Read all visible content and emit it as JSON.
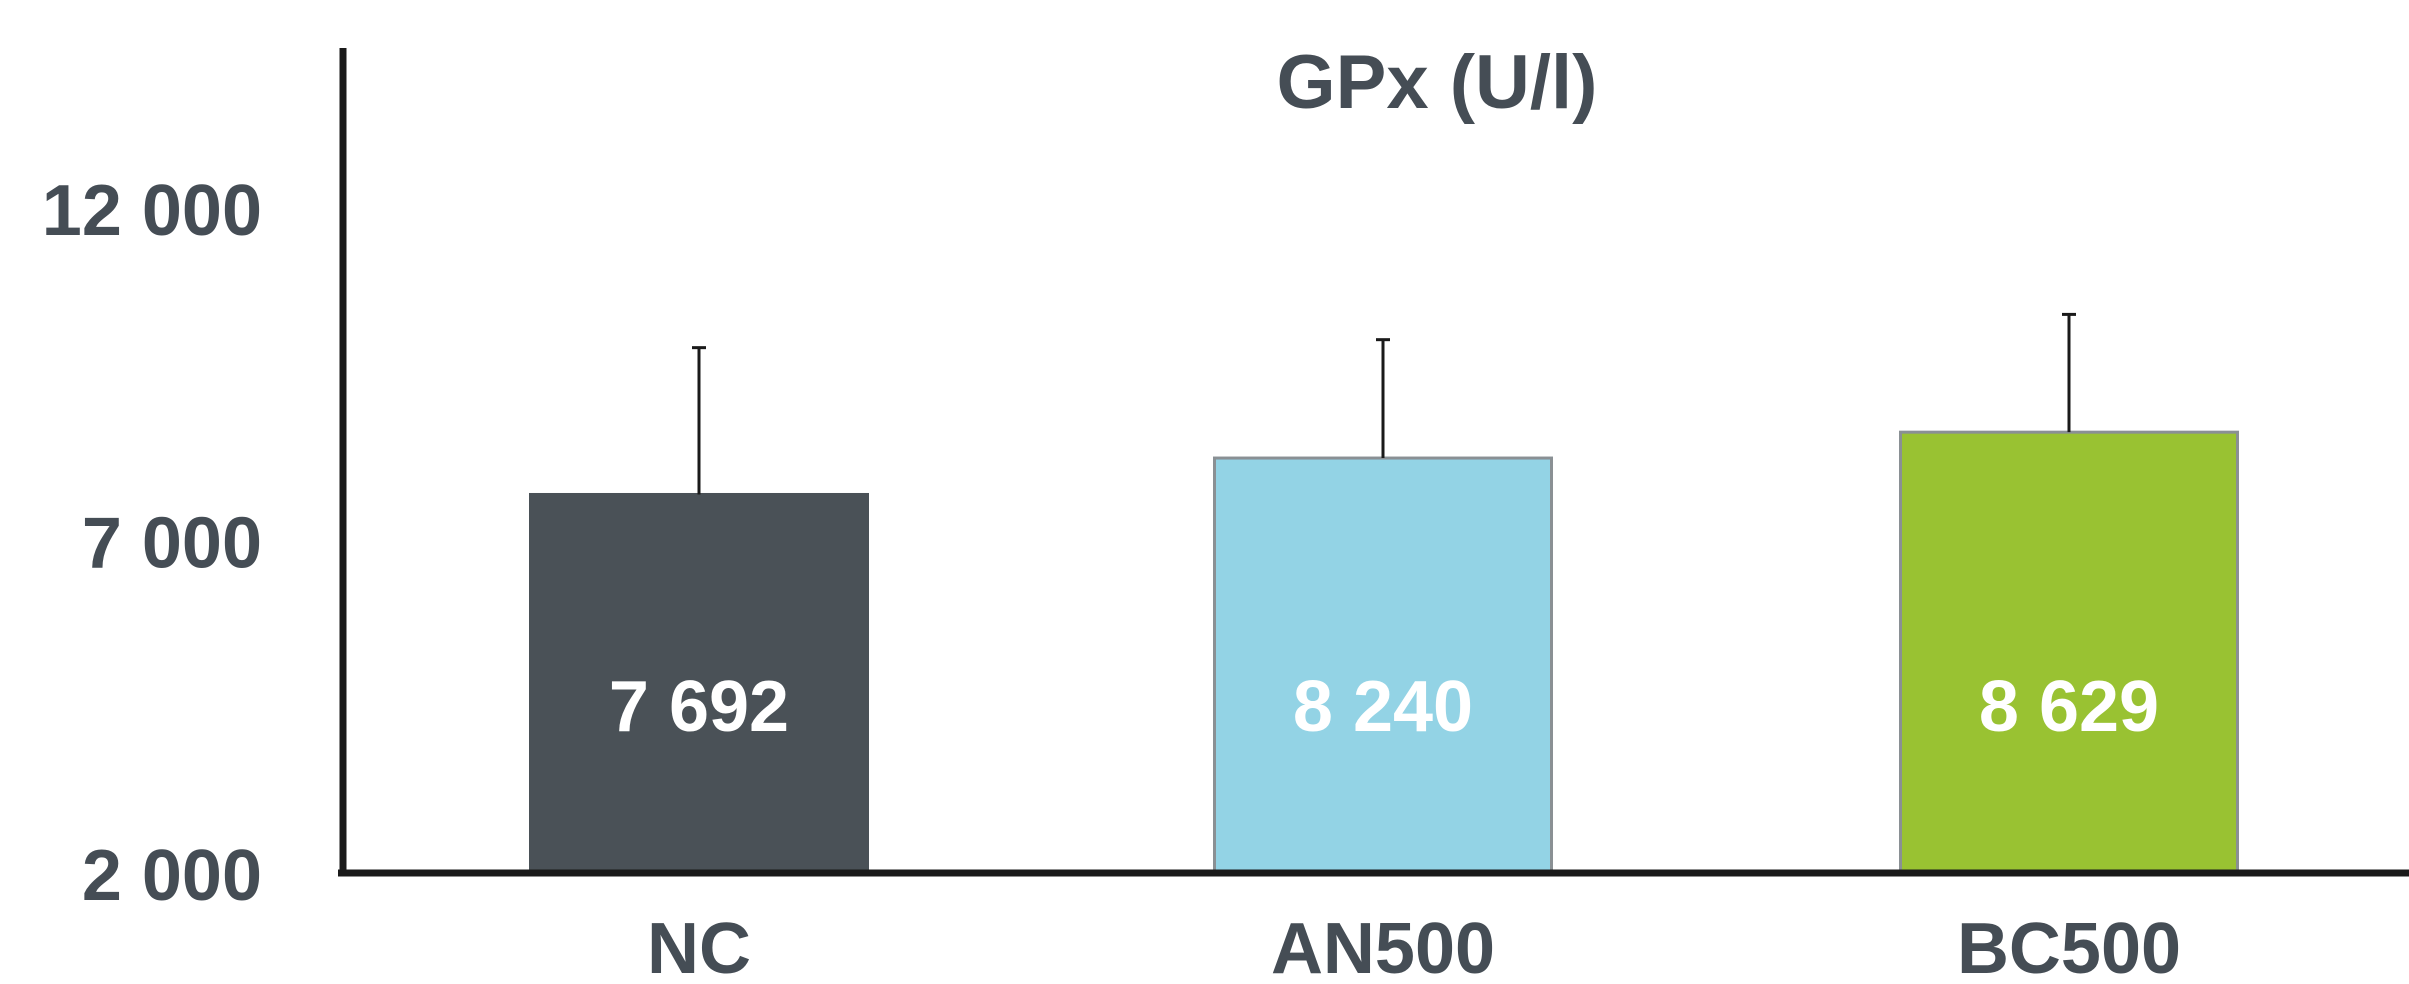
{
  "chart_data": {
    "type": "bar",
    "title": "GPx (U/l)",
    "xlabel": "",
    "ylabel": "",
    "categories": [
      "NC",
      "AN500",
      "BC500"
    ],
    "values": [
      7692,
      8240,
      8629
    ],
    "value_labels": [
      "7 692",
      "8 240",
      "8 629"
    ],
    "error_upper": [
      9900,
      10020,
      10400
    ],
    "ylim": [
      2000,
      12500
    ],
    "yticks": [
      2000,
      7000,
      12000
    ],
    "ytick_labels": [
      "2 000",
      "7 000",
      "12 000"
    ],
    "grid": false,
    "legend": "none",
    "colors": {
      "bars": [
        "#4A5157",
        "#93D3E5",
        "#99C232"
      ],
      "bar_outline": [
        "#4A5157",
        "#8A9094",
        "#8A9094"
      ],
      "text_dark": "#454D55",
      "value_label": "#FFFFFF",
      "axis": "#1A1A1A"
    }
  }
}
